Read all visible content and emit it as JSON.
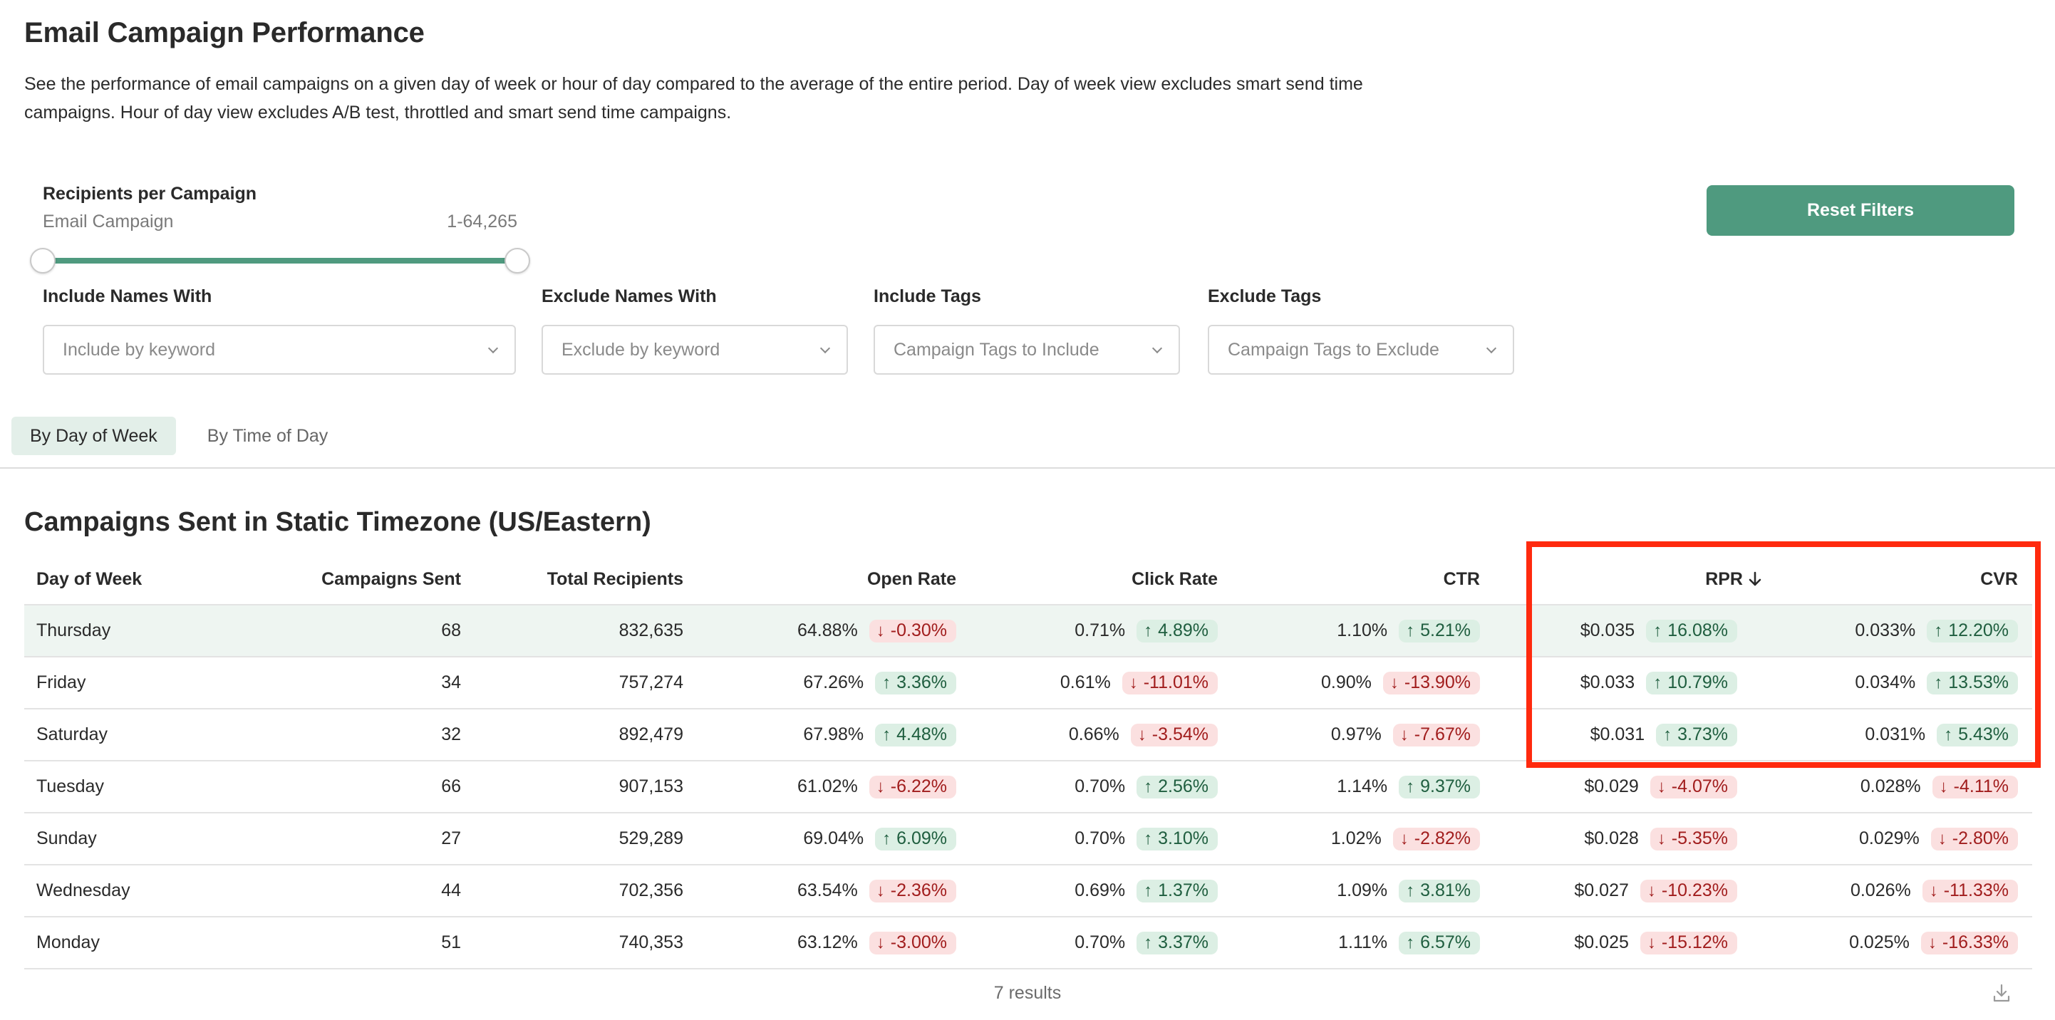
{
  "title": "Email Campaign Performance",
  "description": "See the performance of email campaigns on a given day of week or hour of day compared to the average of the entire period. Day of week view excludes smart send time campaigns. Hour of day view excludes A/B test, throttled and smart send time campaigns.",
  "slider": {
    "label": "Recipients per Campaign",
    "sublabel": "Email Campaign",
    "range_text": "1-64,265"
  },
  "reset_label": "Reset Filters",
  "filters": [
    {
      "label": "Include Names With",
      "placeholder": "Include by keyword"
    },
    {
      "label": "Exclude Names With",
      "placeholder": "Exclude by keyword"
    },
    {
      "label": "Include Tags",
      "placeholder": "Campaign Tags to Include"
    },
    {
      "label": "Exclude Tags",
      "placeholder": "Campaign Tags to Exclude"
    }
  ],
  "tabs": [
    {
      "label": "By Day of Week",
      "active": true
    },
    {
      "label": "By Time of Day",
      "active": false
    }
  ],
  "section_title": "Campaigns Sent in Static Timezone (US/Eastern)",
  "table": {
    "headers": {
      "day": "Day of Week",
      "sent": "Campaigns Sent",
      "recipients": "Total Recipients",
      "open": "Open Rate",
      "click": "Click Rate",
      "ctr": "CTR",
      "rpr": "RPR",
      "cvr": "CVR"
    },
    "sort_icon": "arrow-down-icon",
    "rows": [
      {
        "day": "Thursday",
        "sent": "68",
        "recipients": "832,635",
        "open": "64.88%",
        "open_delta": "-0.30%",
        "click": "0.71%",
        "click_delta": "4.89%",
        "ctr": "1.10%",
        "ctr_delta": "5.21%",
        "rpr": "$0.035",
        "rpr_delta": "16.08%",
        "cvr": "0.033%",
        "cvr_delta": "12.20%"
      },
      {
        "day": "Friday",
        "sent": "34",
        "recipients": "757,274",
        "open": "67.26%",
        "open_delta": "3.36%",
        "click": "0.61%",
        "click_delta": "-11.01%",
        "ctr": "0.90%",
        "ctr_delta": "-13.90%",
        "rpr": "$0.033",
        "rpr_delta": "10.79%",
        "cvr": "0.034%",
        "cvr_delta": "13.53%"
      },
      {
        "day": "Saturday",
        "sent": "32",
        "recipients": "892,479",
        "open": "67.98%",
        "open_delta": "4.48%",
        "click": "0.66%",
        "click_delta": "-3.54%",
        "ctr": "0.97%",
        "ctr_delta": "-7.67%",
        "rpr": "$0.031",
        "rpr_delta": "3.73%",
        "cvr": "0.031%",
        "cvr_delta": "5.43%"
      },
      {
        "day": "Tuesday",
        "sent": "66",
        "recipients": "907,153",
        "open": "61.02%",
        "open_delta": "-6.22%",
        "click": "0.70%",
        "click_delta": "2.56%",
        "ctr": "1.14%",
        "ctr_delta": "9.37%",
        "rpr": "$0.029",
        "rpr_delta": "-4.07%",
        "cvr": "0.028%",
        "cvr_delta": "-4.11%"
      },
      {
        "day": "Sunday",
        "sent": "27",
        "recipients": "529,289",
        "open": "69.04%",
        "open_delta": "6.09%",
        "click": "0.70%",
        "click_delta": "3.10%",
        "ctr": "1.02%",
        "ctr_delta": "-2.82%",
        "rpr": "$0.028",
        "rpr_delta": "-5.35%",
        "cvr": "0.029%",
        "cvr_delta": "-2.80%"
      },
      {
        "day": "Wednesday",
        "sent": "44",
        "recipients": "702,356",
        "open": "63.54%",
        "open_delta": "-2.36%",
        "click": "0.69%",
        "click_delta": "1.37%",
        "ctr": "1.09%",
        "ctr_delta": "3.81%",
        "rpr": "$0.027",
        "rpr_delta": "-10.23%",
        "cvr": "0.026%",
        "cvr_delta": "-11.33%"
      },
      {
        "day": "Monday",
        "sent": "51",
        "recipients": "740,353",
        "open": "63.12%",
        "open_delta": "-3.00%",
        "click": "0.70%",
        "click_delta": "3.37%",
        "ctr": "1.11%",
        "ctr_delta": "6.57%",
        "rpr": "$0.025",
        "rpr_delta": "-15.12%",
        "cvr": "0.025%",
        "cvr_delta": "-16.33%"
      }
    ]
  },
  "results_text": "7 results",
  "colors": {
    "accent": "#4f9a7f",
    "up_bg": "#dcefe4",
    "down_bg": "#fbe0e0",
    "highlight_box": "#ff2a0e"
  }
}
